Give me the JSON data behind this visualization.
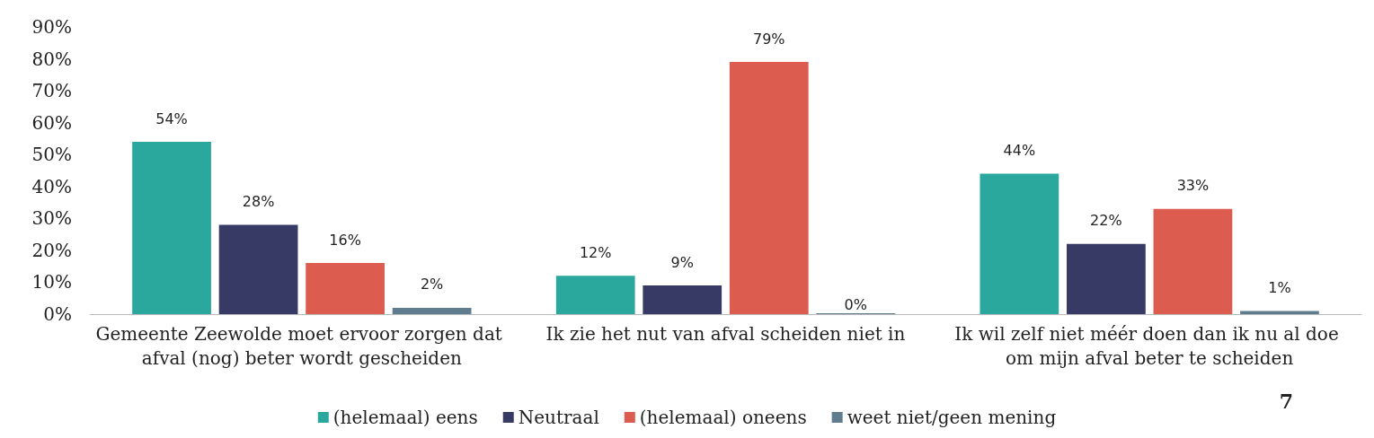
{
  "chart_data": {
    "type": "bar",
    "categories": [
      "Gemeente Zeewolde moet ervoor zorgen dat afval (nog) beter wordt gescheiden",
      "Ik zie het nut van afval scheiden niet in",
      "Ik wil zelf niet méér doen dan ik nu al doe om mijn afval beter te scheiden"
    ],
    "series": [
      {
        "name": "(helemaal) eens",
        "color": "#2ba89d",
        "values": [
          54,
          12,
          44
        ],
        "value_labels": [
          "54%",
          "12%",
          "44%"
        ]
      },
      {
        "name": "Neutraal",
        "color": "#383a66",
        "values": [
          28,
          9,
          22
        ],
        "value_labels": [
          "28%",
          "9%",
          "22%"
        ]
      },
      {
        "name": "(helemaal) oneens",
        "color": "#dd5c50",
        "values": [
          16,
          79,
          33
        ],
        "value_labels": [
          "16%",
          "79%",
          "33%"
        ]
      },
      {
        "name": "weet niet/geen mening",
        "color": "#5f7d8e",
        "values": [
          2,
          0,
          1
        ],
        "value_labels": [
          "2%",
          "0%",
          "1%"
        ]
      }
    ],
    "ylim": [
      0,
      90
    ],
    "yticks": [
      {
        "value": 0,
        "label": "0%"
      },
      {
        "value": 10,
        "label": "10%"
      },
      {
        "value": 20,
        "label": "20%"
      },
      {
        "value": 30,
        "label": "30%"
      },
      {
        "value": 40,
        "label": "40%"
      },
      {
        "value": 50,
        "label": "50%"
      },
      {
        "value": 60,
        "label": "60%"
      },
      {
        "value": 70,
        "label": "70%"
      },
      {
        "value": 80,
        "label": "80%"
      },
      {
        "value": 90,
        "label": "90%"
      }
    ],
    "grid": false,
    "legend": "bottom",
    "annotations": [
      "7"
    ]
  }
}
